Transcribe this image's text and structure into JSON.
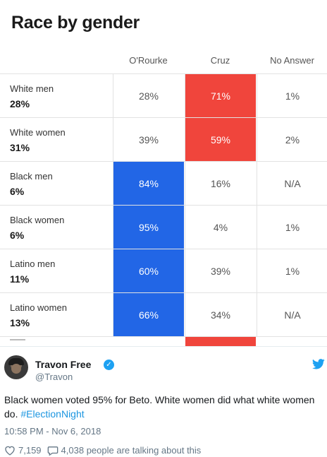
{
  "graphic": {
    "title": "Race by gender",
    "columns": [
      "O'Rourke",
      "Cruz",
      "No Answer"
    ],
    "rows": [
      {
        "label": "White men",
        "share": "28%",
        "values": [
          "28%",
          "71%",
          "1%"
        ]
      },
      {
        "label": "White women",
        "share": "31%",
        "values": [
          "39%",
          "59%",
          "2%"
        ]
      },
      {
        "label": "Black men",
        "share": "6%",
        "values": [
          "84%",
          "16%",
          "N/A"
        ]
      },
      {
        "label": "Black women",
        "share": "6%",
        "values": [
          "95%",
          "4%",
          "1%"
        ]
      },
      {
        "label": "Latino men",
        "share": "11%",
        "values": [
          "60%",
          "39%",
          "1%"
        ]
      },
      {
        "label": "Latino women",
        "share": "13%",
        "values": [
          "66%",
          "34%",
          "N/A"
        ]
      }
    ],
    "winner_colors": {
      "orourke": "#2266e6",
      "cruz": "#f0453c"
    }
  },
  "tweet": {
    "display_name": "Travon Free",
    "handle": "@Travon",
    "verified_mark": "✓",
    "text_main": "Black women voted 95% for Beto. White women did what white women do. ",
    "hashtag": "#ElectionNight",
    "timestamp": "10:58 PM - Nov 6, 2018",
    "likes": "7,159",
    "talking": "4,038 people are talking about this",
    "icons": {
      "like": "heart-icon",
      "reply": "speech-bubble-icon",
      "brand": "twitter-bird-icon"
    },
    "colors": {
      "link": "#1b95e0",
      "verified": "#1da1f2"
    }
  }
}
